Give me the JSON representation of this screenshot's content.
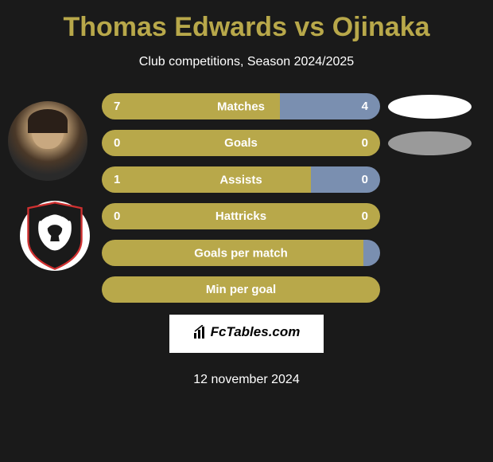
{
  "header": {
    "title": "Thomas Edwards vs Ojinaka",
    "subtitle": "Club competitions, Season 2024/2025"
  },
  "colors": {
    "accent": "#b8a84a",
    "secondary": "#7a8fb0",
    "background": "#1a1a1a",
    "text": "#ffffff"
  },
  "stats": [
    {
      "label": "Matches",
      "left_value": "7",
      "right_value": "4",
      "left_pct": 64,
      "has_oval": true,
      "oval_color": "white"
    },
    {
      "label": "Goals",
      "left_value": "0",
      "right_value": "0",
      "left_pct": 50,
      "has_oval": true,
      "oval_color": "gray",
      "full_bar": true
    },
    {
      "label": "Assists",
      "left_value": "1",
      "right_value": "0",
      "left_pct": 75,
      "has_oval": false
    },
    {
      "label": "Hattricks",
      "left_value": "0",
      "right_value": "0",
      "left_pct": 50,
      "has_oval": false,
      "full_bar": true
    },
    {
      "label": "Goals per match",
      "left_value": "",
      "right_value": "",
      "left_pct": 94,
      "has_oval": false,
      "center_only": true
    },
    {
      "label": "Min per goal",
      "left_value": "",
      "right_value": "",
      "left_pct": 100,
      "has_oval": false,
      "center_only": true,
      "full_bar": true
    }
  ],
  "footer": {
    "brand": "FcTables.com",
    "date": "12 november 2024"
  }
}
